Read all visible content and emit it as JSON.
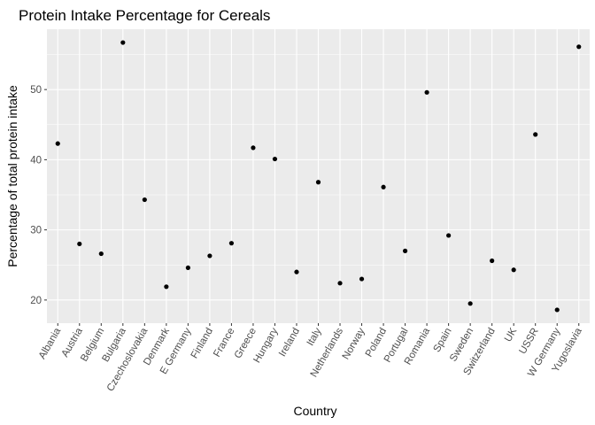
{
  "chart_data": {
    "type": "scatter",
    "title": "Protein Intake Percentage for Cereals",
    "xlabel": "Country",
    "ylabel": "Percentage of total protein intake",
    "categories": [
      "Albania",
      "Austria",
      "Belgium",
      "Bulgaria",
      "Czechoslovakia",
      "Denmark",
      "E Germany",
      "Finland",
      "France",
      "Greece",
      "Hungary",
      "Ireland",
      "Italy",
      "Netherlands",
      "Norway",
      "Poland",
      "Portugal",
      "Romania",
      "Spain",
      "Sweden",
      "Switzerland",
      "UK",
      "USSR",
      "W Germany",
      "Yugoslavia"
    ],
    "values": [
      42.3,
      28.0,
      26.6,
      56.7,
      34.3,
      21.9,
      24.6,
      26.3,
      28.1,
      41.7,
      40.1,
      24.0,
      36.8,
      22.4,
      23.0,
      36.1,
      27.0,
      49.6,
      29.2,
      19.5,
      25.6,
      24.3,
      43.6,
      18.6,
      56.1
    ],
    "ylim": [
      16.7,
      58.6
    ],
    "yticks": [
      20,
      30,
      40,
      50
    ],
    "grid": true,
    "colors": {
      "panel": "#ebebeb",
      "grid_major": "#ffffff",
      "point": "#000000"
    }
  }
}
